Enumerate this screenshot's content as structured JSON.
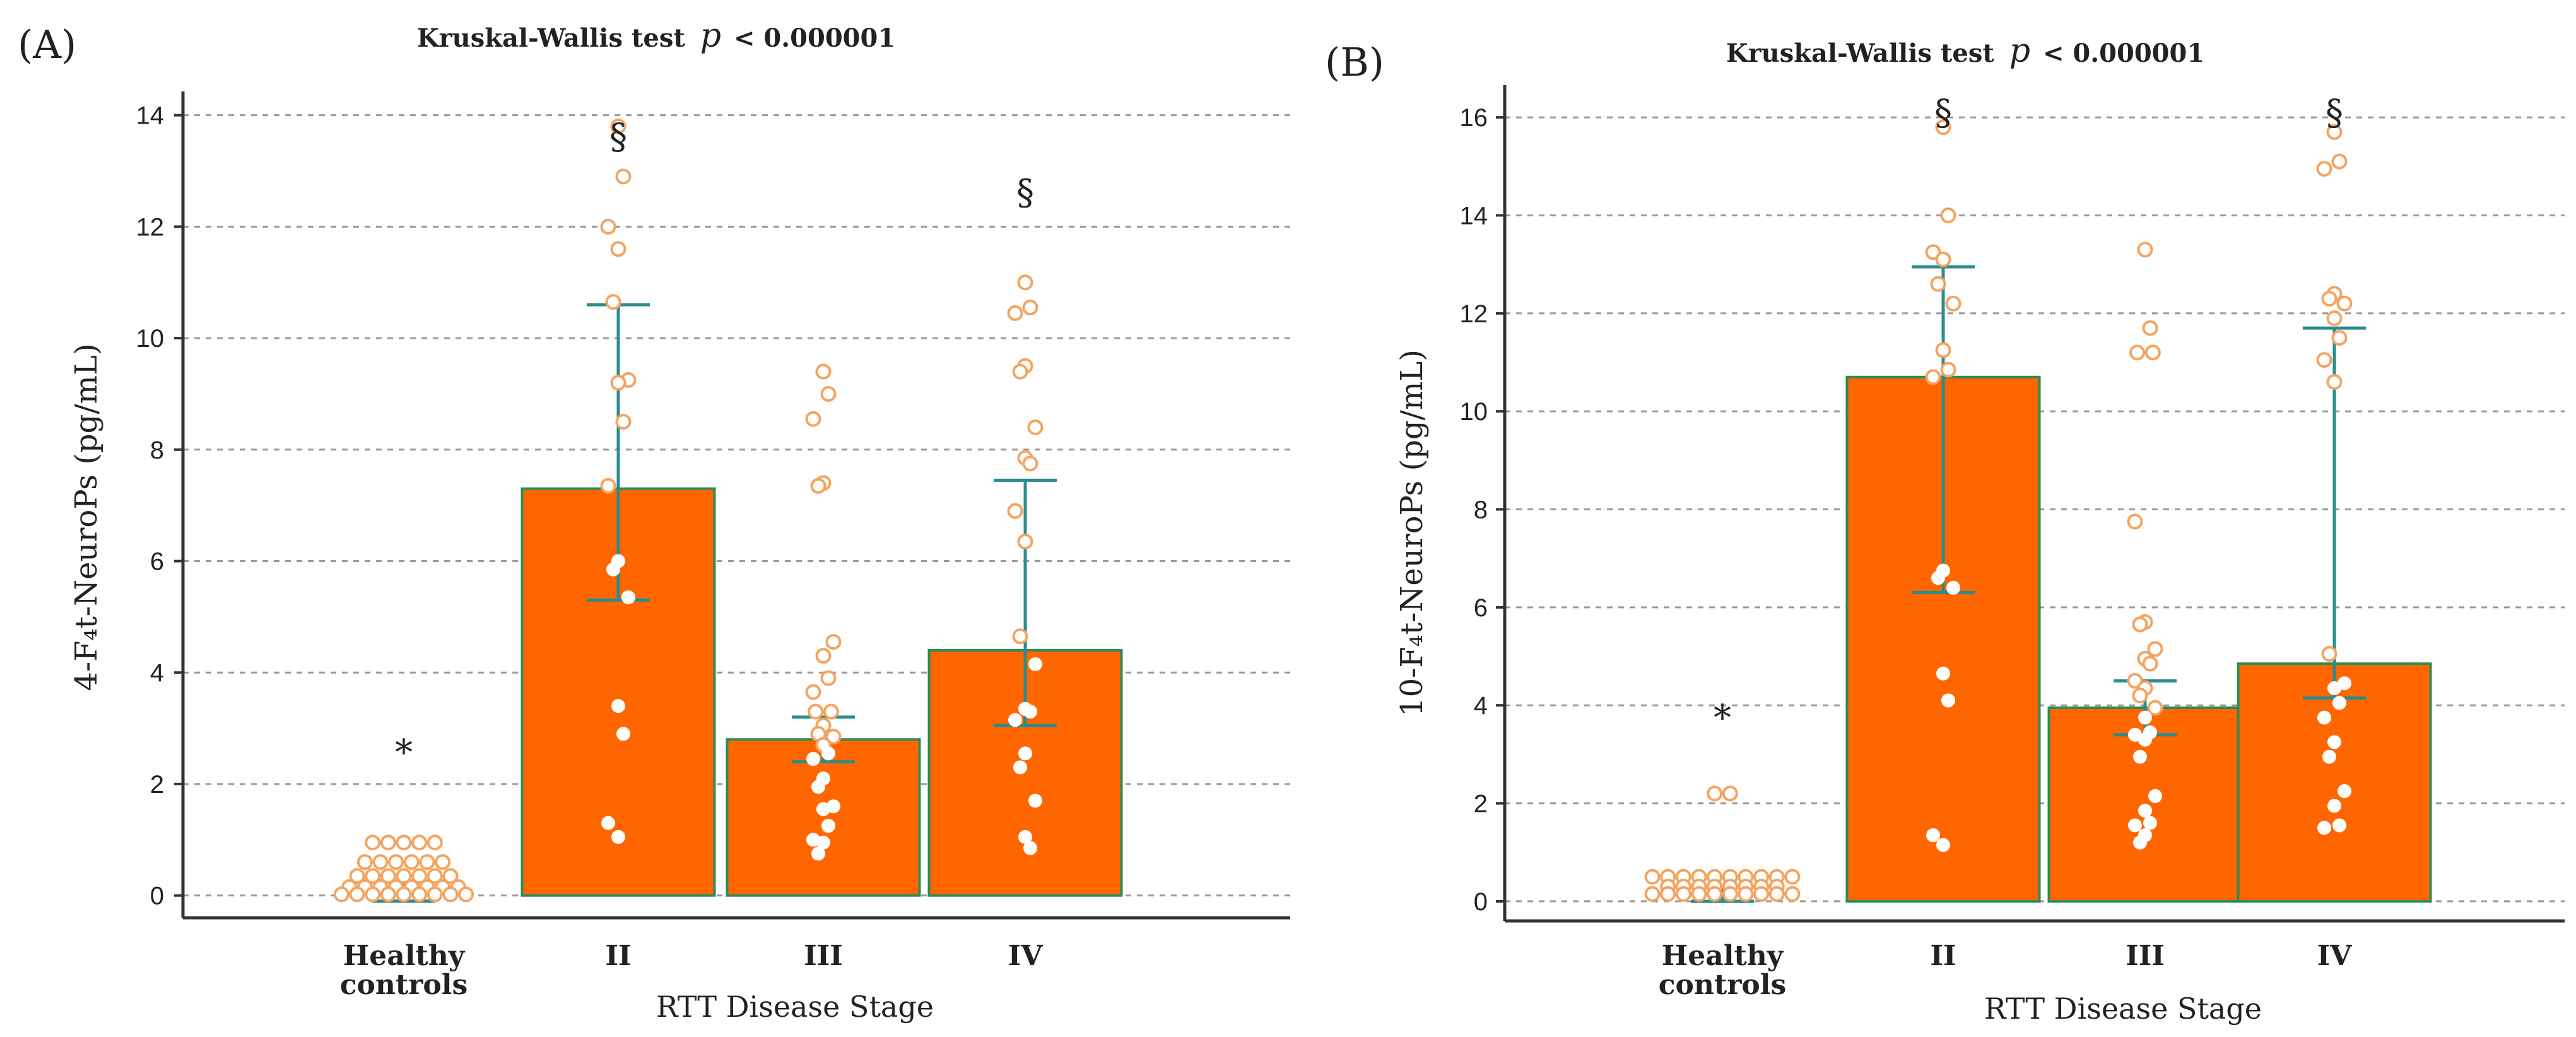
{
  "colors": {
    "bar_fill": "#ff6600",
    "bar_stroke": "#2e8b57",
    "error_bar": "#2a8c8c",
    "point_stroke": "#f4a460",
    "point_inside": "#ffffff",
    "grid": "#9a9a9a",
    "axis": "#333333",
    "text": "#222222"
  },
  "chart_data": [
    {
      "type": "bar",
      "panel_label": "(A)",
      "title_prefix": "Kruskal-Wallis test",
      "title_p": "p",
      "title_suffix": "< 0.000001",
      "ylabel": "4-F₄t-NeuroPs (pg/mL)",
      "xlabel": "RTT Disease Stage",
      "categories": [
        "Healthy controls",
        "II",
        "III",
        "IV"
      ],
      "category_lines": [
        [
          "Healthy",
          "controls"
        ],
        [
          "II"
        ],
        [
          "III"
        ],
        [
          "IV"
        ]
      ],
      "values": [
        null,
        7.3,
        2.8,
        4.4
      ],
      "error_upper": [
        0.25,
        10.6,
        3.2,
        7.45
      ],
      "error_lower": [
        -0.1,
        5.3,
        2.4,
        3.05
      ],
      "ylim": [
        -0.4,
        14.2
      ],
      "yticks": [
        0,
        2,
        4,
        6,
        8,
        10,
        12,
        14
      ],
      "grid": true,
      "annotations": [
        {
          "category_index": 0,
          "text": "*",
          "y": 2.35
        },
        {
          "category_index": 1,
          "text": "§",
          "y": 13.4
        },
        {
          "category_index": 3,
          "text": "§",
          "y": 12.4
        }
      ],
      "points": [
        [
          0.95,
          0.95,
          0.95,
          0.95,
          0.95,
          0.6,
          0.6,
          0.6,
          0.6,
          0.6,
          0.6,
          0.35,
          0.35,
          0.35,
          0.35,
          0.35,
          0.35,
          0.35,
          0.15,
          0.15,
          0.15,
          0.15,
          0.15,
          0.15,
          0.15,
          0.15,
          0.02,
          0.02,
          0.02,
          0.02,
          0.02,
          0.02,
          0.02,
          0.02,
          0.02
        ],
        [
          13.8,
          12.9,
          12.0,
          11.6,
          10.65,
          9.25,
          9.2,
          8.5,
          7.35,
          6.0,
          5.85,
          5.35,
          3.4,
          2.9,
          1.3,
          1.05
        ],
        [
          9.4,
          9.0,
          8.55,
          7.4,
          7.35,
          4.55,
          4.3,
          3.9,
          3.65,
          3.3,
          3.3,
          3.05,
          2.9,
          2.85,
          2.7,
          2.55,
          2.45,
          2.1,
          1.95,
          1.6,
          1.55,
          1.25,
          1.0,
          0.95,
          0.75
        ],
        [
          11.0,
          10.55,
          10.45,
          9.5,
          9.4,
          8.4,
          7.85,
          7.75,
          6.9,
          6.35,
          4.65,
          4.15,
          3.35,
          3.3,
          3.15,
          2.55,
          2.3,
          1.7,
          1.05,
          0.85
        ]
      ]
    },
    {
      "type": "bar",
      "panel_label": "(B)",
      "title_prefix": "Kruskal-Wallis test",
      "title_p": "p",
      "title_suffix": "< 0.000001",
      "ylabel": "10-F₄t-NeuroPs (pg/mL)",
      "xlabel": "RTT Disease Stage",
      "categories": [
        "Healthy controls",
        "II",
        "III",
        "IV"
      ],
      "category_lines": [
        [
          "Healthy",
          "controls"
        ],
        [
          "II"
        ],
        [
          "III"
        ],
        [
          "IV"
        ]
      ],
      "values": [
        null,
        10.7,
        3.95,
        4.85
      ],
      "error_upper": [
        0.3,
        12.95,
        4.5,
        11.7
      ],
      "error_lower": [
        0.0,
        6.3,
        3.4,
        4.15
      ],
      "ylim": [
        -0.4,
        16.4
      ],
      "yticks": [
        0,
        2,
        4,
        6,
        8,
        10,
        12,
        14,
        16
      ],
      "grid": true,
      "annotations": [
        {
          "category_index": 0,
          "text": "*",
          "y": 3.5
        },
        {
          "category_index": 1,
          "text": "§",
          "y": 15.85
        },
        {
          "category_index": 3,
          "text": "§",
          "y": 15.85
        }
      ],
      "points": [
        [
          2.2,
          2.2,
          0.5,
          0.5,
          0.5,
          0.5,
          0.5,
          0.5,
          0.5,
          0.5,
          0.5,
          0.5,
          0.3,
          0.3,
          0.3,
          0.3,
          0.3,
          0.3,
          0.3,
          0.3,
          0.15,
          0.15,
          0.15,
          0.15,
          0.15,
          0.15,
          0.15,
          0.15,
          0.15,
          0.15
        ],
        [
          15.8,
          14.0,
          13.25,
          13.1,
          12.6,
          12.2,
          11.25,
          10.85,
          10.7,
          6.75,
          6.6,
          6.4,
          4.65,
          4.1,
          1.35,
          1.15
        ],
        [
          13.3,
          11.7,
          11.2,
          11.2,
          7.75,
          5.7,
          5.65,
          5.15,
          4.95,
          4.85,
          4.5,
          4.35,
          4.2,
          3.95,
          3.75,
          3.45,
          3.4,
          3.3,
          2.95,
          2.15,
          1.85,
          1.6,
          1.55,
          1.35,
          1.2
        ],
        [
          15.7,
          15.1,
          14.95,
          12.4,
          12.3,
          12.2,
          11.9,
          11.5,
          11.05,
          10.6,
          5.05,
          4.45,
          4.35,
          4.05,
          3.75,
          3.25,
          2.95,
          2.25,
          1.95,
          1.55,
          1.5
        ]
      ]
    }
  ]
}
